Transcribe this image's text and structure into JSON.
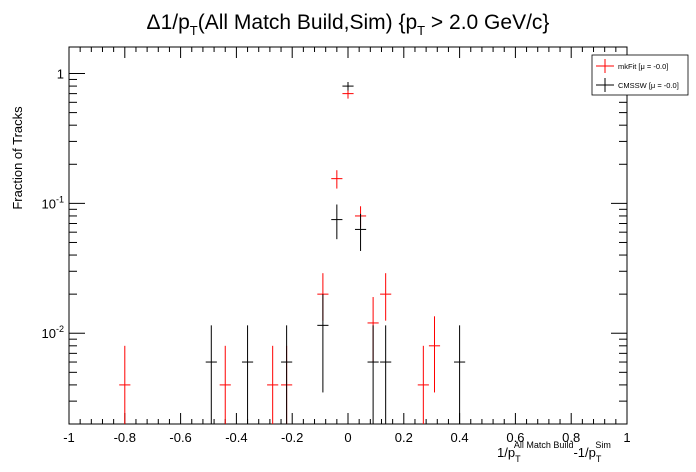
{
  "chart_data": {
    "type": "scatter",
    "title_parts": {
      "delta": "Δ1/p",
      "t_sub": "T",
      "middle": "(All Match Build,Sim) {p",
      "t_sub2": "T",
      "tail": " > 2.0 GeV/c}"
    },
    "ylabel": "Fraction of Tracks",
    "xlabel_parts": {
      "a": "1/p",
      "a_sub": "T",
      "a_sup": "All Match Build",
      "b": "-1/p",
      "b_sub": "T",
      "b_sup": "Sim"
    },
    "xlim": [
      -1,
      1
    ],
    "ylim": [
      0.002,
      1.6
    ],
    "y_scale": "log",
    "grid": false,
    "legend_position": "top-right",
    "x_ticks": [
      "-1",
      "-0.8",
      "-0.6",
      "-0.4",
      "-0.2",
      "0",
      "0.2",
      "0.4",
      "0.6",
      "0.8",
      "1"
    ],
    "y_ticks": [
      {
        "base": "1",
        "exp": ""
      },
      {
        "base": "10",
        "exp": "-1"
      },
      {
        "base": "10",
        "exp": "-2"
      }
    ],
    "bin_half_width": 0.04,
    "series": [
      {
        "name": "mkFit  [μ = -0.0]",
        "color": "#ff0000",
        "points": [
          {
            "x": -0.8,
            "y": 0.004,
            "lo": 0.002,
            "hi": 0.008
          },
          {
            "x": -0.44,
            "y": 0.004,
            "lo": 0.002,
            "hi": 0.008
          },
          {
            "x": -0.27,
            "y": 0.004,
            "lo": 0.002,
            "hi": 0.008
          },
          {
            "x": -0.22,
            "y": 0.004,
            "lo": 0.002,
            "hi": 0.008
          },
          {
            "x": -0.09,
            "y": 0.02,
            "lo": 0.0125,
            "hi": 0.029
          },
          {
            "x": -0.04,
            "y": 0.155,
            "lo": 0.13,
            "hi": 0.18
          },
          {
            "x": 0.0,
            "y": 0.7,
            "lo": 0.64,
            "hi": 0.76
          },
          {
            "x": 0.045,
            "y": 0.08,
            "lo": 0.065,
            "hi": 0.095
          },
          {
            "x": 0.09,
            "y": 0.012,
            "lo": 0.006,
            "hi": 0.019
          },
          {
            "x": 0.135,
            "y": 0.02,
            "lo": 0.0125,
            "hi": 0.029
          },
          {
            "x": 0.27,
            "y": 0.004,
            "lo": 0.002,
            "hi": 0.008
          },
          {
            "x": 0.31,
            "y": 0.008,
            "lo": 0.0035,
            "hi": 0.0135
          }
        ]
      },
      {
        "name": "CMSSW  [μ = -0.0]",
        "color": "#000000",
        "points": [
          {
            "x": -0.49,
            "y": 0.006,
            "lo": 0.002,
            "hi": 0.0115
          },
          {
            "x": -0.36,
            "y": 0.006,
            "lo": 0.002,
            "hi": 0.0115
          },
          {
            "x": -0.22,
            "y": 0.006,
            "lo": 0.002,
            "hi": 0.0115
          },
          {
            "x": -0.09,
            "y": 0.0115,
            "lo": 0.0035,
            "hi": 0.02
          },
          {
            "x": -0.04,
            "y": 0.075,
            "lo": 0.053,
            "hi": 0.098
          },
          {
            "x": 0.0,
            "y": 0.8,
            "lo": 0.74,
            "hi": 0.86
          },
          {
            "x": 0.045,
            "y": 0.063,
            "lo": 0.043,
            "hi": 0.083
          },
          {
            "x": 0.09,
            "y": 0.006,
            "lo": 0.002,
            "hi": 0.0115
          },
          {
            "x": 0.135,
            "y": 0.006,
            "lo": 0.002,
            "hi": 0.0115
          },
          {
            "x": 0.4,
            "y": 0.006,
            "lo": 0.002,
            "hi": 0.0115
          }
        ]
      }
    ]
  }
}
